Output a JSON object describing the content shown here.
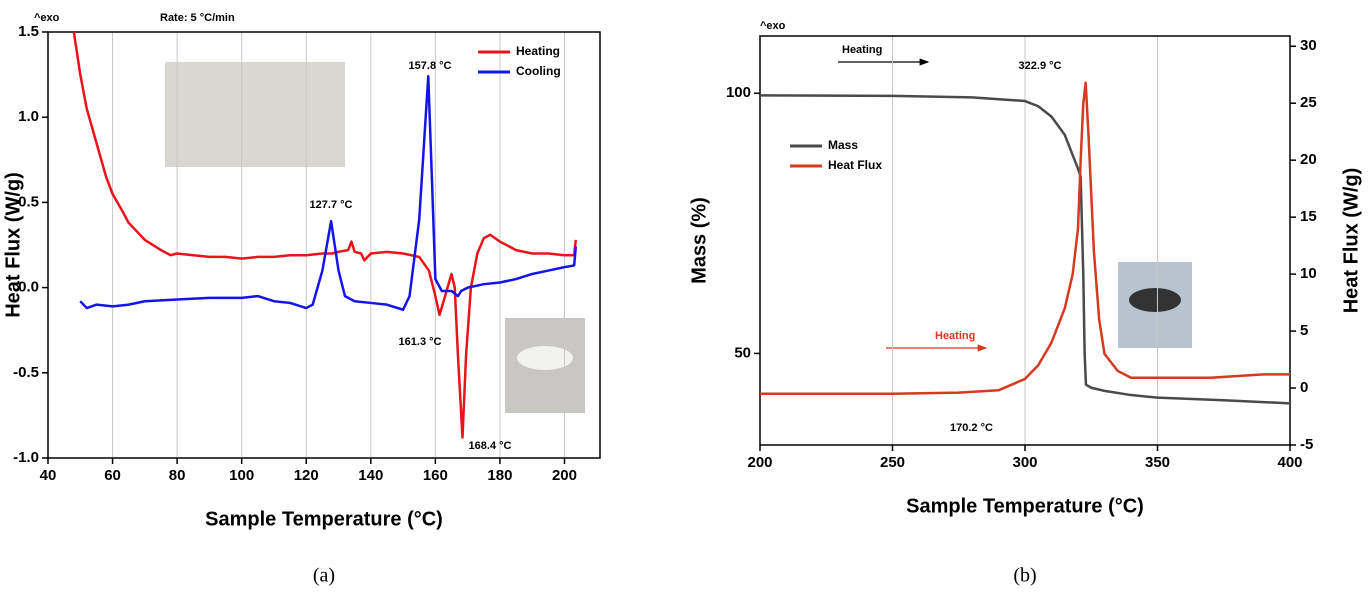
{
  "chart_data": [
    {
      "type": "line",
      "caption": "(a)",
      "xlabel": "Sample Temperature (°C)",
      "ylabel": "Heat Flux (W/g)",
      "xlim": [
        40,
        211
      ],
      "xticks": [
        40,
        60,
        80,
        100,
        120,
        140,
        160,
        180,
        200
      ],
      "ylim": [
        -1,
        1.5
      ],
      "yticks": [
        {
          "value": -1,
          "label": "-1.0"
        },
        -0.5,
        {
          "value": 0,
          "label": "0.0"
        },
        0.5,
        {
          "value": 1,
          "label": "1.0"
        },
        1.5
      ],
      "grid": "x",
      "legend": "upper right",
      "annotations": [
        {
          "text": "^exo",
          "color": "#000000"
        },
        {
          "text": "Rate: 5 °C/min",
          "color": "#000000"
        },
        {
          "text": "157.8 °C",
          "color": "#000000"
        },
        {
          "text": "127.7 °C",
          "color": "#000000"
        },
        {
          "text": "161.3 °C",
          "color": "#000000"
        },
        {
          "text": "168.4 °C",
          "color": "#000000"
        }
      ],
      "series": [
        {
          "name": "Heating",
          "color": "#e8141b",
          "x": [
            48,
            50,
            52,
            55,
            58,
            60,
            63,
            65,
            68,
            70,
            75,
            78,
            80,
            85,
            90,
            95,
            100,
            105,
            110,
            115,
            120,
            125,
            128,
            130,
            133,
            134,
            135,
            137,
            138,
            140,
            145,
            150,
            155,
            158,
            160,
            161.3,
            163,
            165,
            166,
            167,
            168.4,
            169.5,
            171,
            173,
            175,
            177,
            180,
            185,
            190,
            195,
            200,
            203,
            203.5
          ],
          "values": [
            1.5,
            1.25,
            1.05,
            0.85,
            0.65,
            0.55,
            0.45,
            0.38,
            0.32,
            0.28,
            0.22,
            0.19,
            0.2,
            0.19,
            0.18,
            0.18,
            0.17,
            0.18,
            0.18,
            0.19,
            0.19,
            0.2,
            0.2,
            0.21,
            0.22,
            0.27,
            0.21,
            0.2,
            0.16,
            0.2,
            0.21,
            0.2,
            0.18,
            0.1,
            -0.05,
            -0.16,
            -0.05,
            0.08,
            0.0,
            -0.4,
            -0.88,
            -0.4,
            0.0,
            0.2,
            0.29,
            0.31,
            0.27,
            0.22,
            0.2,
            0.2,
            0.19,
            0.19,
            0.28
          ]
        },
        {
          "name": "Cooling",
          "color": "#1414e8",
          "x": [
            50,
            52,
            55,
            60,
            65,
            70,
            80,
            90,
            100,
            105,
            110,
            115,
            120,
            122,
            125,
            127.7,
            130,
            132,
            135,
            140,
            145,
            150,
            152,
            155,
            157,
            157.8,
            159,
            160,
            162,
            165,
            167,
            168,
            170,
            175,
            180,
            185,
            190,
            195,
            200,
            203,
            203.5
          ],
          "values": [
            -0.08,
            -0.12,
            -0.1,
            -0.11,
            -0.1,
            -0.08,
            -0.07,
            -0.06,
            -0.06,
            -0.05,
            -0.08,
            -0.09,
            -0.12,
            -0.1,
            0.1,
            0.39,
            0.1,
            -0.05,
            -0.08,
            -0.09,
            -0.1,
            -0.13,
            -0.05,
            0.4,
            1.0,
            1.24,
            0.6,
            0.05,
            -0.02,
            -0.02,
            -0.05,
            -0.02,
            0.0,
            0.02,
            0.03,
            0.05,
            0.08,
            0.1,
            0.12,
            0.13,
            0.24
          ]
        }
      ]
    },
    {
      "type": "line",
      "caption": "(b)",
      "xlabel": "Sample Temperature (°C)",
      "ylabel": "Mass (%)",
      "y2label": "Heat Flux (W/g)",
      "xlim": [
        200,
        400
      ],
      "xticks": [
        200,
        250,
        300,
        350,
        400
      ],
      "ylim": [
        32.4,
        111
      ],
      "yticks": [
        50,
        100
      ],
      "y2lim": [
        -5,
        30.9
      ],
      "y2ticks": [
        -5,
        0,
        5,
        10,
        15,
        20,
        25,
        30
      ],
      "grid": "x",
      "legend": "center left",
      "annotations": [
        {
          "text": "^exo",
          "color": "#000000"
        },
        {
          "text": "Heating",
          "color": "#000000"
        },
        {
          "text": "322.9 °C",
          "color": "#000000"
        },
        {
          "text": "Heating",
          "color": "#d33a20"
        },
        {
          "text": "170.2 °C",
          "color": "#000000"
        }
      ],
      "series": [
        {
          "name": "Mass",
          "color": "#4a4a4a",
          "x": [
            200,
            250,
            280,
            300,
            305,
            310,
            315,
            320,
            321,
            322,
            322.5,
            323,
            325,
            330,
            340,
            350,
            375,
            400
          ],
          "values": [
            99.6,
            99.5,
            99.2,
            98.5,
            97.5,
            95.5,
            92,
            85.5,
            84,
            65,
            50,
            44,
            43.4,
            42.8,
            42,
            41.5,
            41,
            40.4
          ]
        },
        {
          "name": "Heat Flux",
          "color": "#d33a20",
          "axis": "y2",
          "x": [
            200,
            250,
            275,
            290,
            300,
            305,
            310,
            315,
            318,
            320,
            321,
            322,
            322.9,
            324,
            326,
            328,
            330,
            335,
            340,
            350,
            370,
            390,
            400
          ],
          "values": [
            -0.5,
            -0.5,
            -0.4,
            -0.2,
            0.8,
            2,
            4,
            7,
            10,
            14,
            20,
            25,
            26.8,
            22,
            12,
            6,
            3,
            1.5,
            0.9,
            0.9,
            0.9,
            1.2,
            1.2
          ]
        }
      ]
    }
  ]
}
